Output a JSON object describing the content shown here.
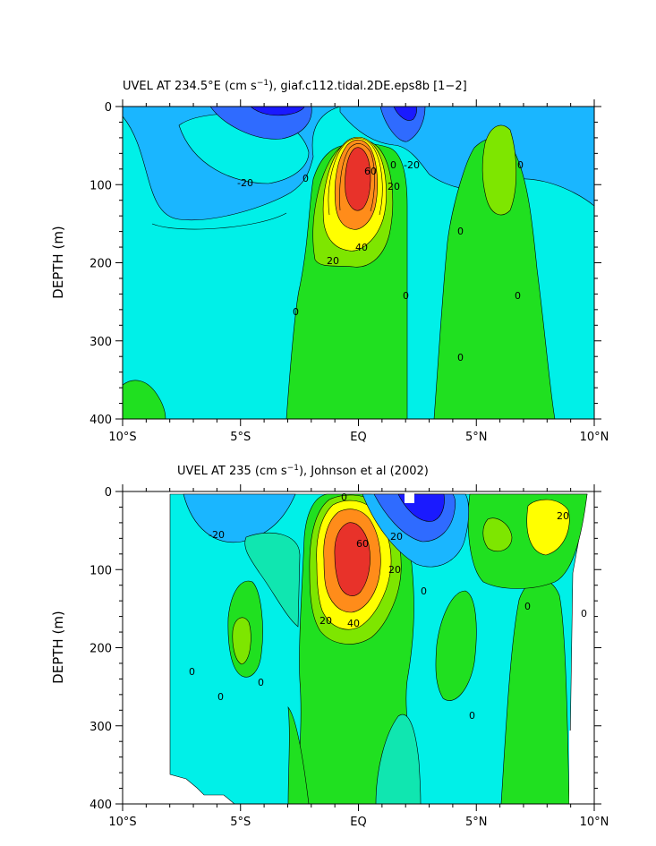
{
  "colors": {
    "deep_blue": "#1a1aff",
    "blue": "#2f6bff",
    "light_blue": "#1ab6ff",
    "cyan": "#00f0e8",
    "aqua": "#10e6b0",
    "green": "#20e020",
    "lime": "#7ee600",
    "yellow": "#ffff00",
    "orange": "#ff8c1a",
    "red": "#e8322a",
    "background": "#ffffff",
    "axis": "#000000"
  },
  "chart_data": [
    {
      "type": "heatmap",
      "title_main": "UVEL AT 234.5°E (cm s",
      "title_sup": "−1",
      "title_rest": "), giaf.c112.tidal.2DE.eps8b [1−2]",
      "ylabel": "DEPTH (m)",
      "xlabel": "",
      "x_ticks": [
        "10°S",
        "5°S",
        "EQ",
        "5°N",
        "10°N"
      ],
      "y_ticks": [
        "0",
        "100",
        "200",
        "300",
        "400"
      ],
      "xlim": [
        -10,
        10
      ],
      "ylim": [
        0,
        400
      ],
      "contour_labels": [
        "-20",
        "0",
        "20",
        "40",
        "60",
        "0",
        "-20",
        "20",
        "0",
        "0",
        "0",
        "0",
        "0",
        "0"
      ],
      "features": [
        {
          "kind": "eastward jet (EUC)",
          "lat": 0,
          "depth": 115,
          "max": 90
        },
        {
          "kind": "westward near-surface flow",
          "lat": -3.5,
          "depth": 0,
          "min": -50
        },
        {
          "kind": "westward near-surface flow",
          "lat": 2.5,
          "depth": 0,
          "min": -40
        },
        {
          "kind": "eastward undercurrent",
          "lat": 6,
          "depth": 90,
          "max": 10
        }
      ]
    },
    {
      "type": "heatmap",
      "title_main": "UVEL AT 235 (cm s",
      "title_sup": "−1",
      "title_rest": "), Johnson et al (2002)",
      "ylabel": "DEPTH (m)",
      "xlabel": "",
      "x_ticks": [
        "10°S",
        "5°S",
        "EQ",
        "5°N",
        "10°N"
      ],
      "y_ticks": [
        "0",
        "100",
        "200",
        "300",
        "400"
      ],
      "xlim": [
        -10,
        10
      ],
      "ylim": [
        0,
        400
      ],
      "contour_labels": [
        "-20",
        "0",
        "60",
        "40",
        "20",
        "20",
        "20",
        "0",
        "0",
        "0",
        "0",
        "0",
        "0",
        "0",
        "20"
      ],
      "features": [
        {
          "kind": "eastward jet (EUC)",
          "lat": -0.5,
          "depth": 90,
          "max": 100
        },
        {
          "kind": "westward near-surface flow",
          "lat": 2.5,
          "depth": 10,
          "min": -70
        },
        {
          "kind": "eastward near-surface flow",
          "lat": 8,
          "depth": 60,
          "max": 25
        }
      ]
    }
  ]
}
